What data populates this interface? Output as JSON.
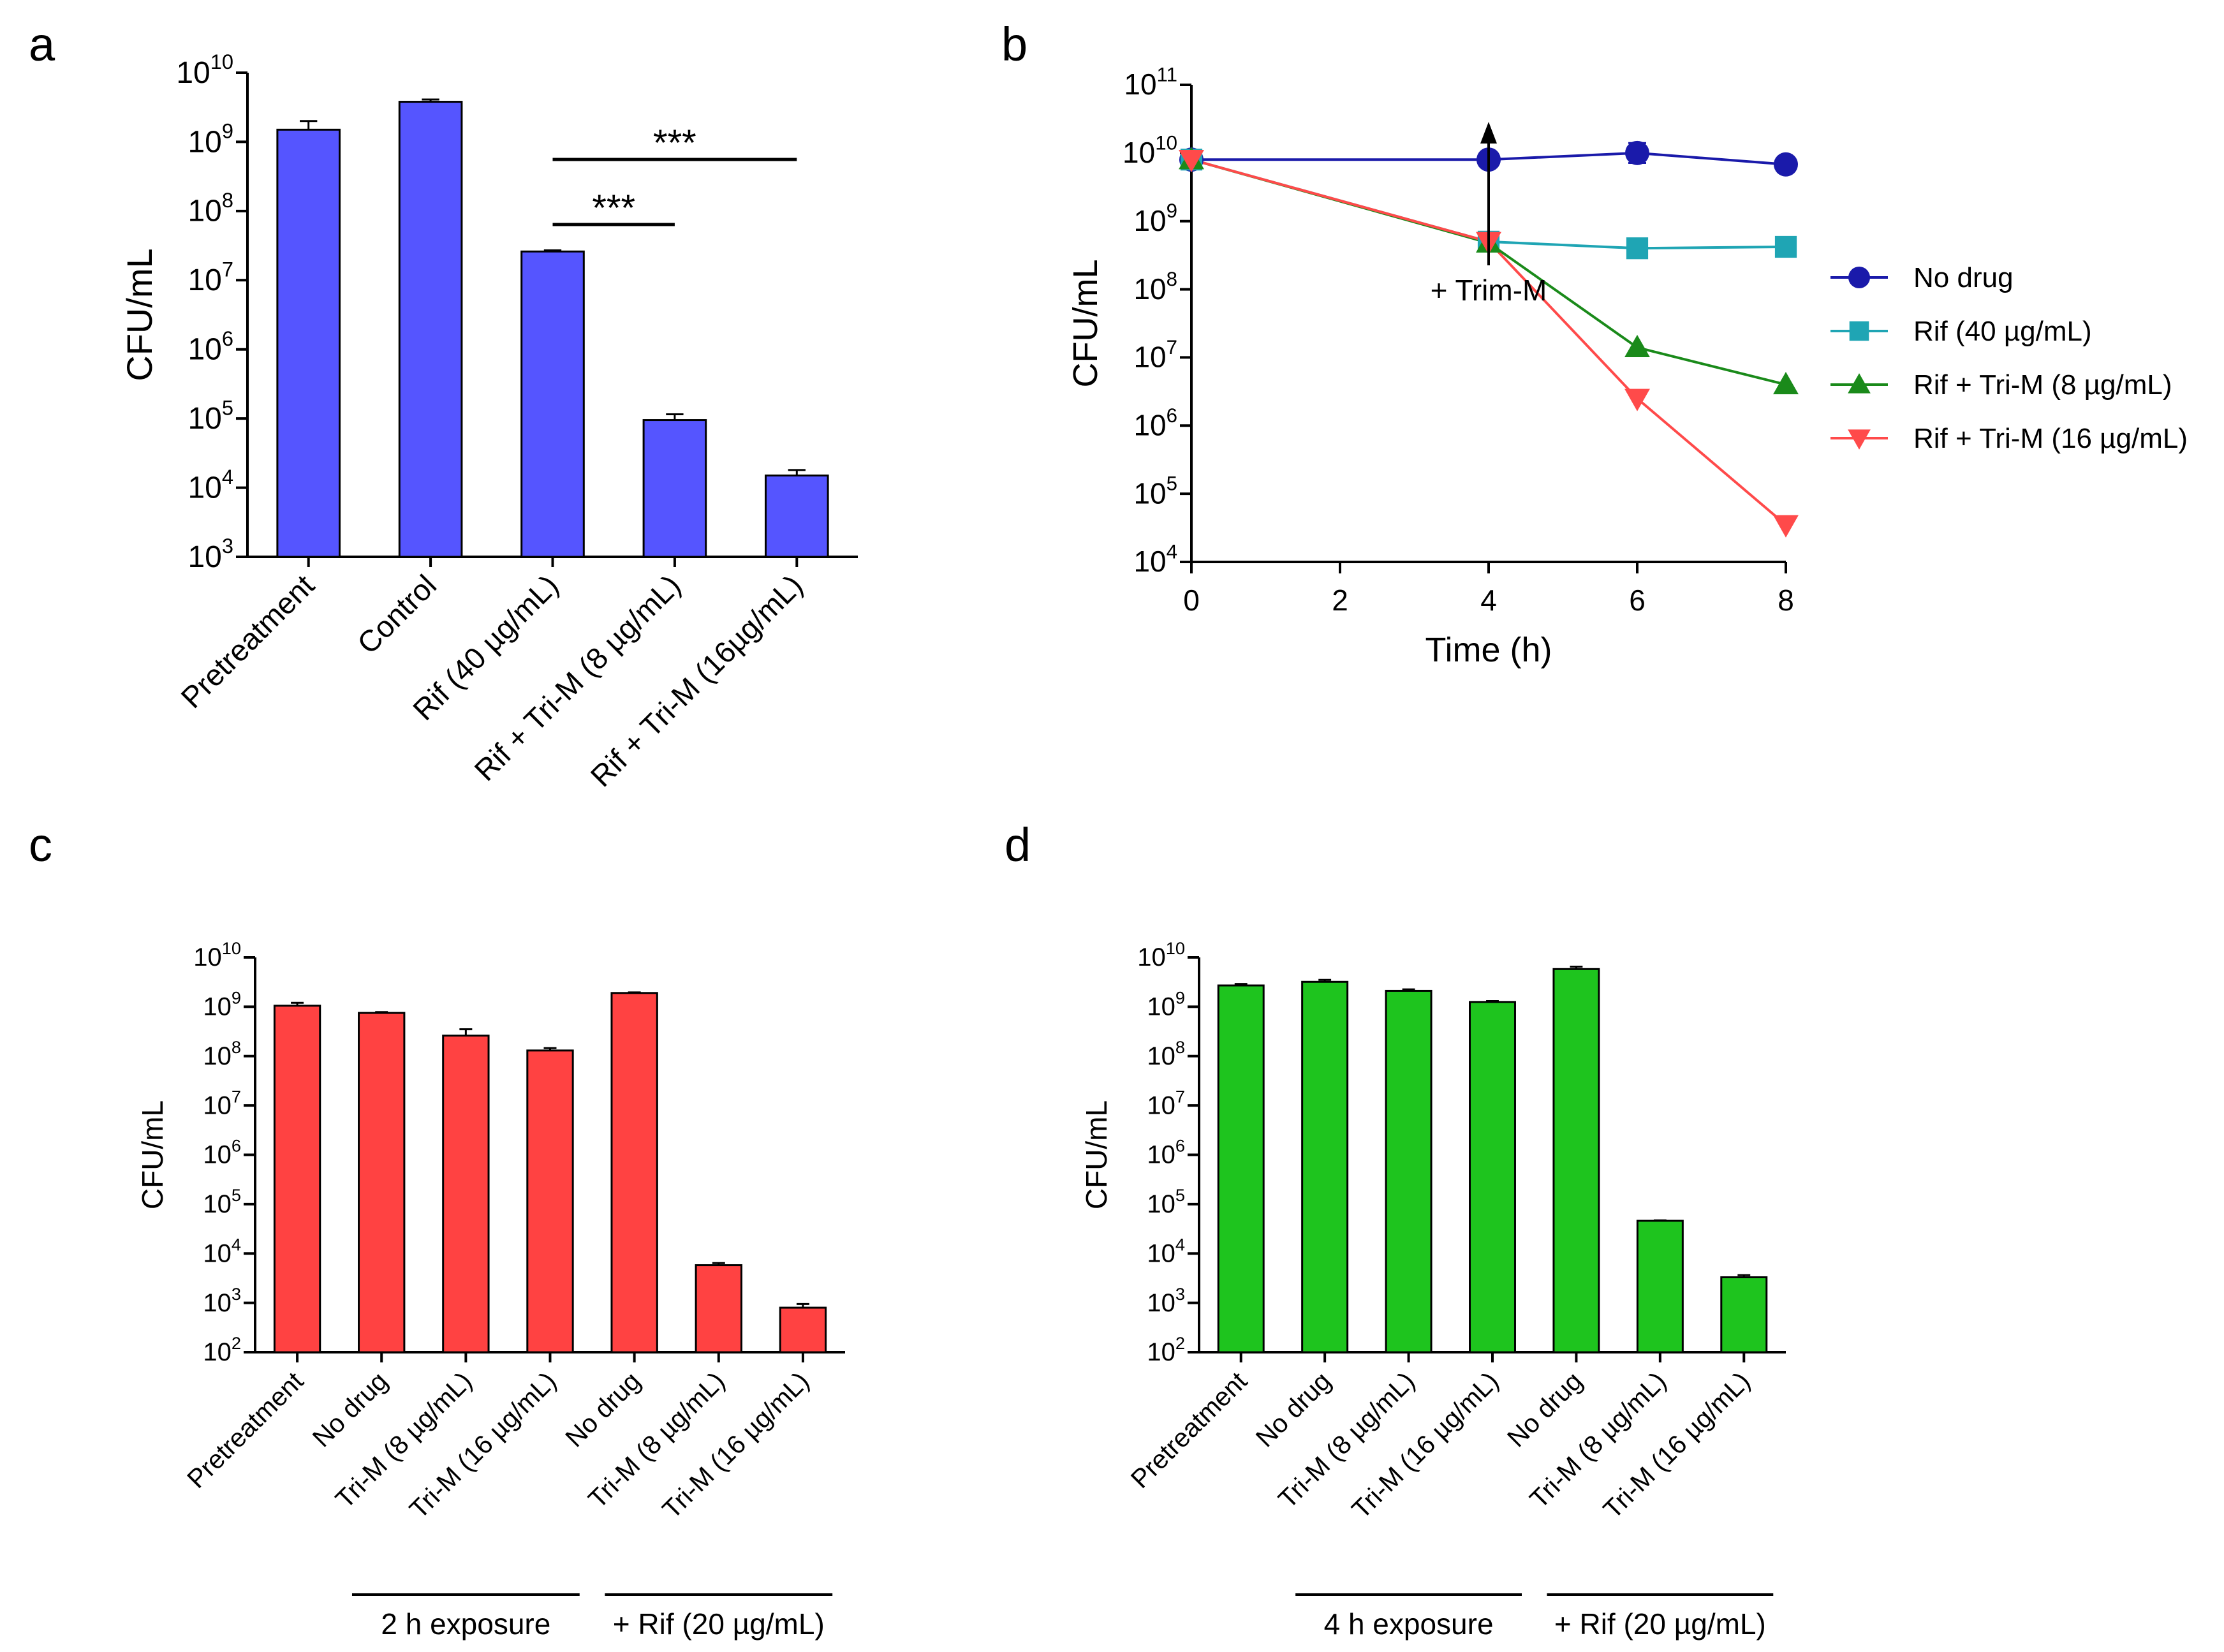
{
  "chart_data": [
    {
      "panel": "a",
      "type": "bar",
      "yscale": "log",
      "ylabel": "CFU/mL",
      "ylim": [
        1000,
        10000000000
      ],
      "ytick_exponents": [
        3,
        4,
        5,
        6,
        7,
        8,
        9,
        10
      ],
      "categories": [
        "Pretreatment",
        "Control",
        "Rif (40 µg/mL)",
        "Rif + Tri-M (8 µg/mL)",
        "Rif + Tri-M (16µg/mL)"
      ],
      "values": [
        1500000000,
        3800000000,
        26000000,
        95000,
        15000
      ],
      "error_upper": [
        2000000000,
        4100000000,
        27000000,
        115000,
        18000
      ],
      "bar_color": "#5555ff",
      "significance": [
        {
          "from": 2,
          "to": 3,
          "label": "***"
        },
        {
          "from": 2,
          "to": 4,
          "label": "***"
        }
      ]
    },
    {
      "panel": "b",
      "type": "line",
      "yscale": "log",
      "xlabel": "Time (h)",
      "ylabel": "CFU/mL",
      "xlim": [
        0,
        8
      ],
      "xticks": [
        "0",
        "2",
        "4",
        "6",
        "8"
      ],
      "ylim": [
        10000,
        100000000000
      ],
      "ytick_exponents": [
        4,
        5,
        6,
        7,
        8,
        9,
        10,
        11
      ],
      "annotation": "+ Trim-M",
      "annotation_x": 4,
      "series": [
        {
          "name": "No drug",
          "color": "#1a1aaa",
          "marker": "circle",
          "x": [
            0,
            4,
            6,
            8
          ],
          "values": [
            8000000000,
            8000000000,
            10000000000,
            6800000000
          ],
          "error_upper": [
            null,
            null,
            14000000000,
            8300000000
          ]
        },
        {
          "name": "Rif (40 µg/mL)",
          "color": "#1fa5b4",
          "marker": "square",
          "x": [
            0,
            4,
            6,
            8
          ],
          "values": [
            8000000000,
            500000000,
            400000000,
            420000000
          ]
        },
        {
          "name": "Rif + Tri-M (8 µg/mL)",
          "color": "#1a8a1a",
          "marker": "triangle-up",
          "x": [
            0,
            4,
            6,
            8
          ],
          "values": [
            8000000000,
            480000000,
            14000000,
            4000000
          ]
        },
        {
          "name": "Rif + Tri-M (16 µg/mL)",
          "color": "#ff4a4a",
          "marker": "triangle-down",
          "x": [
            0,
            4,
            6,
            8
          ],
          "values": [
            8000000000,
            500000000,
            2500000,
            35000
          ]
        }
      ]
    },
    {
      "panel": "c",
      "type": "bar",
      "yscale": "log",
      "ylabel": "CFU/mL",
      "ylim": [
        100,
        10000000000
      ],
      "ytick_exponents": [
        2,
        3,
        4,
        5,
        6,
        7,
        8,
        9,
        10
      ],
      "categories": [
        "Pretreatment",
        "No drug",
        "Tri-M (8 µg/mL)",
        "Tri-M (16 µg/mL)",
        "No drug",
        "Tri-M (8 µg/mL)",
        "Tri-M (16 µg/mL)"
      ],
      "values": [
        1050000000,
        750000000,
        260000000,
        130000000,
        1900000000,
        5800,
        800
      ],
      "error_upper": [
        1200000000,
        780000000,
        350000000,
        145000000,
        1950000000,
        6400,
        950
      ],
      "bar_color": "#ff4242",
      "groups": [
        {
          "label": "2 h exposure",
          "from": 1,
          "to": 3
        },
        {
          "label": "+ Rif (20 µg/mL)",
          "from": 4,
          "to": 6
        }
      ]
    },
    {
      "panel": "d",
      "type": "bar",
      "yscale": "log",
      "ylabel": "CFU/mL",
      "ylim": [
        100,
        10000000000
      ],
      "ytick_exponents": [
        2,
        3,
        4,
        5,
        6,
        7,
        8,
        9,
        10
      ],
      "categories": [
        "Pretreatment",
        "No drug",
        "Tri-M (8 µg/mL)",
        "Tri-M (16 µg/mL)",
        "No drug",
        "Tri-M (8 µg/mL)",
        "Tri-M (16 µg/mL)"
      ],
      "values": [
        2700000000,
        3200000000,
        2100000000,
        1250000000,
        5800000000,
        46000,
        3300
      ],
      "error_upper": [
        2900000000,
        3500000000,
        2250000000,
        1300000000,
        6500000000,
        47000,
        3650
      ],
      "bar_color": "#1ec41e",
      "groups": [
        {
          "label": "4 h exposure",
          "from": 1,
          "to": 3
        },
        {
          "label": "+ Rif (20 µg/mL)",
          "from": 4,
          "to": 6
        }
      ]
    }
  ]
}
